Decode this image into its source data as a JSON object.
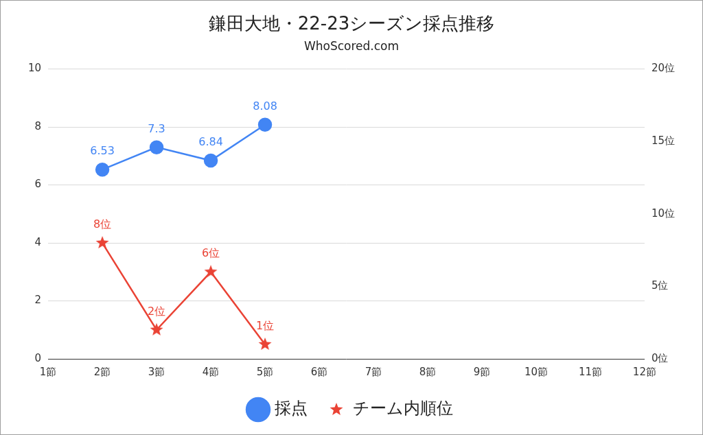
{
  "chart_data": {
    "type": "line",
    "title": "鎌田大地・22-23シーズン採点推移",
    "subtitle": "WhoScored.com",
    "categories": [
      "1節",
      "2節",
      "3節",
      "4節",
      "5節",
      "6節",
      "7節",
      "8節",
      "9節",
      "10節",
      "11節",
      "12節"
    ],
    "series": [
      {
        "name": "採点",
        "color": "#4285f4",
        "axis": "y",
        "marker": "circle",
        "values": [
          null,
          6.53,
          7.3,
          6.84,
          8.08,
          null,
          null,
          null,
          null,
          null,
          null,
          null
        ]
      },
      {
        "name": "チーム内順位",
        "color": "#ea4335",
        "axis": "y2",
        "marker": "star",
        "values": [
          null,
          8,
          2,
          6,
          1,
          null,
          null,
          null,
          null,
          null,
          null,
          null
        ],
        "value_labels": [
          null,
          "8位",
          "2位",
          "6位",
          "1位",
          null,
          null,
          null,
          null,
          null,
          null,
          null
        ]
      }
    ],
    "ylim": [
      0,
      10
    ],
    "yticks": [
      0,
      2,
      4,
      6,
      8,
      10
    ],
    "y2lim": [
      0,
      20
    ],
    "y2ticks": [
      {
        "value": 0,
        "label": "0位"
      },
      {
        "value": 5,
        "label": "5位"
      },
      {
        "value": 10,
        "label": "10位"
      },
      {
        "value": 15,
        "label": "15位"
      },
      {
        "value": 20,
        "label": "20位"
      }
    ],
    "grid": true,
    "legend": "bottom",
    "data_labels": true
  }
}
